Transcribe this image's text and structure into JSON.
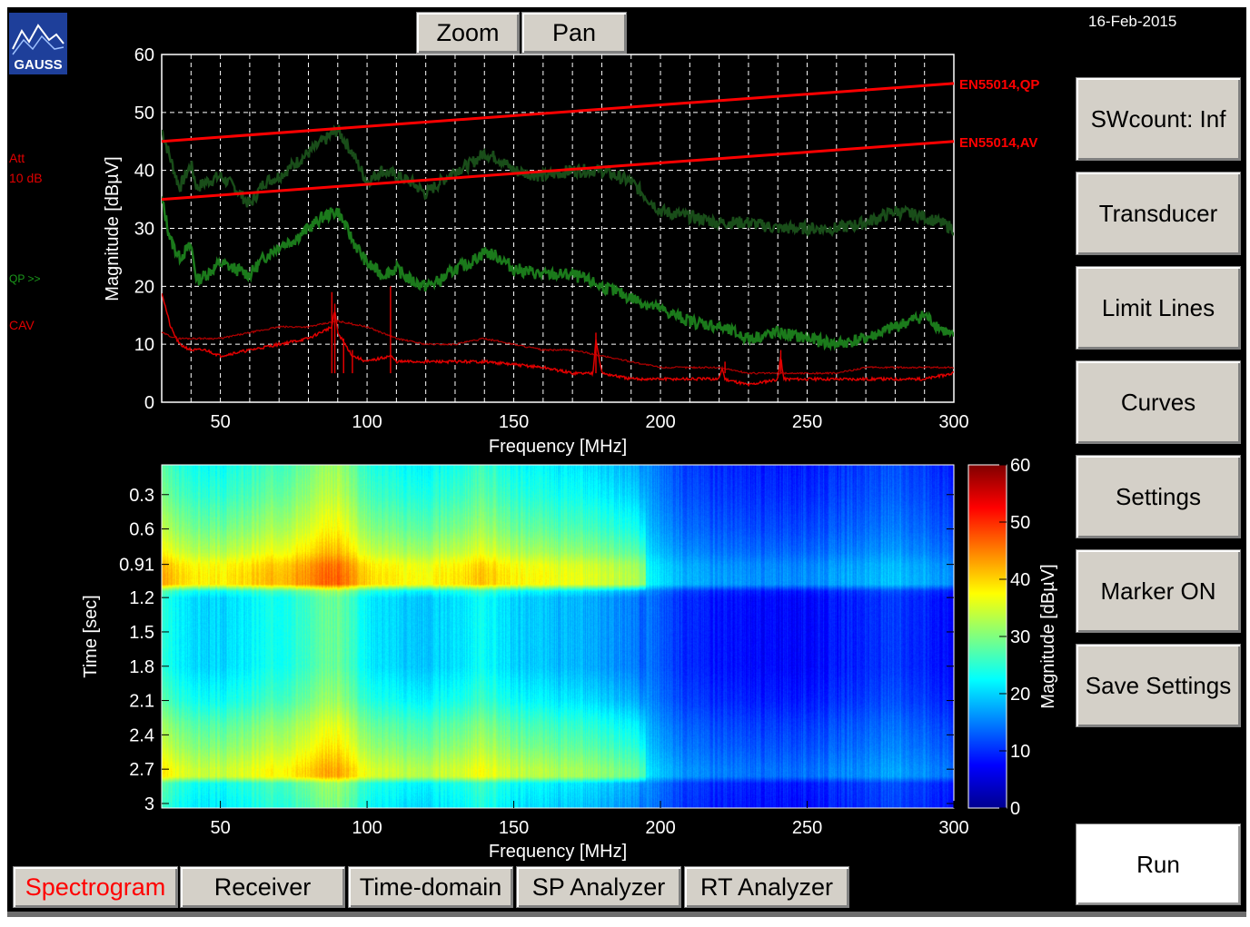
{
  "app": {
    "logo_text": "GAUSS",
    "date": "16-Feb-2015"
  },
  "toolbar": {
    "zoom_label": "Zoom",
    "pan_label": "Pan"
  },
  "side_buttons": [
    {
      "label": "SWcount: Inf"
    },
    {
      "label": "Transducer"
    },
    {
      "label": "Limit Lines"
    },
    {
      "label": "Curves"
    },
    {
      "label": "Settings"
    },
    {
      "label": "Marker ON"
    },
    {
      "label": "Save Settings"
    }
  ],
  "run_button": {
    "label": "Run"
  },
  "tabs": [
    {
      "label": "Spectrogram",
      "active": true
    },
    {
      "label": "Receiver"
    },
    {
      "label": "Time-domain"
    },
    {
      "label": "SP Analyzer"
    },
    {
      "label": "RT Analyzer"
    }
  ],
  "left_labels": {
    "att_line1": "Att",
    "att_line2": "10 dB",
    "qp": "QP >>",
    "cav": "CAV"
  },
  "colors": {
    "limit": "#ff0000",
    "qp_active": "#1b7a1b",
    "qp_dark": "#194d19",
    "cav": "#e00000",
    "active_tab": "#ff0000"
  },
  "chart_data": [
    {
      "type": "line",
      "title": "",
      "xlabel": "Frequency [MHz]",
      "ylabel": "Magnitude [dBµV]",
      "xlim": [
        30,
        300
      ],
      "ylim": [
        0,
        60
      ],
      "xticks": [
        50,
        100,
        150,
        200,
        250,
        300
      ],
      "yticks": [
        0,
        10,
        20,
        30,
        40,
        50,
        60
      ],
      "grid": true,
      "limit_lines": [
        {
          "name": "EN55014,QP",
          "x": [
            30,
            300
          ],
          "y": [
            45,
            55
          ]
        },
        {
          "name": "EN55014,AV",
          "x": [
            30,
            300
          ],
          "y": [
            35,
            45
          ]
        }
      ],
      "series": [
        {
          "x": [
            30,
            33,
            36,
            40,
            42,
            45,
            50,
            55,
            60,
            65,
            70,
            75,
            80,
            85,
            90,
            95,
            100,
            105,
            110,
            115,
            120,
            125,
            130,
            135,
            140,
            145,
            150,
            160,
            170,
            180,
            190,
            200,
            210,
            220,
            230,
            240,
            250,
            260,
            270,
            280,
            290,
            300
          ],
          "y": [
            47,
            42,
            37,
            41,
            37,
            38,
            39,
            37,
            34,
            38,
            39,
            41,
            43,
            45,
            47,
            43,
            38,
            40,
            39,
            38,
            36,
            38,
            40,
            41,
            43,
            42,
            40,
            39,
            40,
            40,
            38,
            33,
            32,
            31,
            31,
            30,
            30,
            30,
            31,
            33,
            32,
            30
          ]
        },
        {
          "x": [
            30,
            33,
            36,
            40,
            42,
            45,
            50,
            55,
            60,
            65,
            70,
            75,
            80,
            85,
            90,
            95,
            100,
            105,
            110,
            115,
            120,
            125,
            130,
            135,
            140,
            145,
            150,
            160,
            170,
            180,
            190,
            200,
            210,
            220,
            230,
            240,
            250,
            260,
            270,
            280,
            290,
            300
          ],
          "y": [
            35,
            28,
            25,
            27,
            21,
            22,
            24,
            23,
            22,
            25,
            27,
            28,
            30,
            32,
            33,
            28,
            24,
            22,
            23,
            21,
            20,
            21,
            23,
            24,
            26,
            25,
            23,
            22,
            22,
            20,
            18,
            16,
            14,
            13,
            11,
            12,
            11,
            10,
            11,
            13,
            15,
            11
          ]
        },
        {
          "x": [
            30,
            33,
            36,
            40,
            45,
            50,
            60,
            70,
            80,
            88,
            89,
            90,
            95,
            100,
            108,
            110,
            120,
            140,
            160,
            170,
            177,
            178,
            180,
            190,
            200,
            220,
            221,
            222,
            230,
            240,
            241,
            242,
            250,
            260,
            270,
            280,
            290,
            300
          ],
          "y": [
            19,
            13,
            10,
            9,
            9,
            8,
            9,
            10,
            11,
            13,
            16,
            12,
            8,
            7,
            8,
            7,
            7,
            7,
            6,
            5,
            5,
            11,
            5,
            4,
            4,
            4,
            6,
            4,
            3,
            4,
            8,
            4,
            4,
            4,
            4,
            4,
            4,
            5
          ]
        },
        {
          "x": [
            30,
            35,
            40,
            50,
            60,
            70,
            80,
            90,
            100,
            110,
            120,
            130,
            140,
            150,
            160,
            170,
            180,
            190,
            200,
            210,
            220,
            230,
            240,
            250,
            260,
            270,
            280,
            290,
            300
          ],
          "y": [
            12,
            11,
            11,
            11,
            12,
            13,
            13,
            14,
            13,
            11,
            10,
            10,
            11,
            10,
            9,
            9,
            8,
            7,
            6,
            6,
            6,
            5,
            5,
            5,
            5,
            6,
            6,
            6,
            6
          ]
        }
      ]
    },
    {
      "type": "heatmap",
      "xlabel": "Frequency [MHz]",
      "ylabel": "Time [sec]",
      "colorbar_label": "Magnitude [dBµV]",
      "xlim": [
        30,
        300
      ],
      "xticks": [
        50,
        100,
        150,
        200,
        250,
        300
      ],
      "yticks": [
        "0.3",
        "0.6",
        "0.91",
        "1.2",
        "1.5",
        "1.8",
        "2.1",
        "2.4",
        "2.7",
        "3"
      ],
      "ylim": [
        0.04,
        3.04
      ],
      "clim": [
        0,
        60
      ],
      "cticks": [
        0,
        10,
        20,
        30,
        40,
        50,
        60
      ],
      "freq_profile": {
        "x": [
          30,
          35,
          40,
          45,
          50,
          60,
          70,
          80,
          85,
          90,
          95,
          100,
          110,
          120,
          130,
          140,
          150,
          160,
          170,
          180,
          190,
          200,
          210,
          220,
          230,
          240,
          250,
          260,
          270,
          280,
          290,
          300
        ],
        "y": [
          30,
          27,
          26,
          25,
          25,
          27,
          29,
          31,
          33,
          34,
          31,
          27,
          25,
          24,
          26,
          28,
          25,
          24,
          23,
          22,
          20,
          15,
          12,
          11,
          10,
          10,
          10,
          11,
          12,
          13,
          12,
          10
        ]
      },
      "time_profile": {
        "t": [
          0.05,
          0.3,
          0.6,
          0.8,
          0.91,
          1.0,
          1.08,
          1.14,
          1.2,
          1.5,
          1.8,
          2.1,
          2.3,
          2.5,
          2.6,
          2.7,
          2.76,
          2.82,
          3.04
        ],
        "offset": [
          -2,
          0,
          4,
          8,
          12,
          13,
          13,
          -2,
          -5,
          -5,
          -5,
          -2,
          2,
          5,
          7,
          9,
          9,
          -2,
          -4
        ]
      }
    }
  ]
}
